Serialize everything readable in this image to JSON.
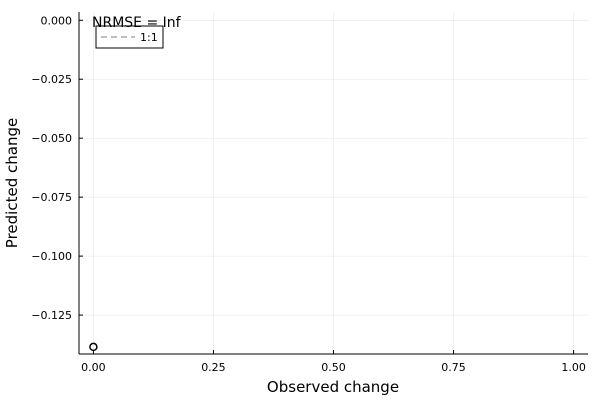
{
  "chart_data": {
    "type": "scatter",
    "title": "",
    "xlabel": "Observed change",
    "ylabel": "Predicted change",
    "xlim": [
      -0.03,
      1.03
    ],
    "ylim": [
      -0.1415,
      0.0035
    ],
    "xticks": [
      0.0,
      0.25,
      0.5,
      0.75,
      1.0
    ],
    "xtick_labels": [
      "0.00",
      "0.25",
      "0.50",
      "0.75",
      "1.00"
    ],
    "yticks": [
      0.0,
      -0.025,
      -0.05,
      -0.075,
      -0.1,
      -0.125
    ],
    "ytick_labels": [
      "0.000",
      "−0.025",
      "−0.050",
      "−0.075",
      "−0.100",
      "−0.125"
    ],
    "grid": true,
    "annotation": "NRMSE = Inf",
    "legend": {
      "position": "top-left",
      "entries": [
        {
          "label": "1:1",
          "style": "dashed",
          "color": "#aaaaaa"
        }
      ]
    },
    "series": [
      {
        "name": "points",
        "type": "scatter",
        "marker": "open-circle",
        "color": "#000000",
        "points": [
          [
            0.0,
            -0.1385
          ]
        ]
      },
      {
        "name": "1:1",
        "type": "line",
        "style": "dashed",
        "color": "#aaaaaa",
        "points": []
      }
    ]
  }
}
